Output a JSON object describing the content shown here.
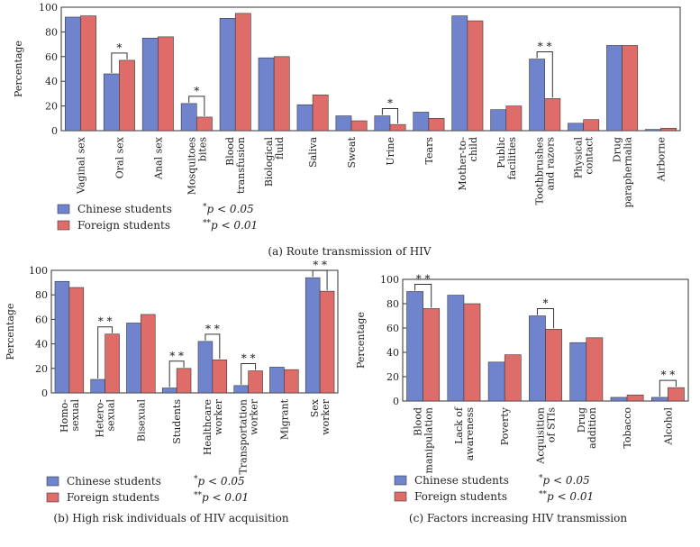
{
  "colors": {
    "chinese": "#6f84cc",
    "foreign": "#de6c68",
    "edge": "#3a3a3a"
  },
  "chart_data": [
    {
      "id": "a",
      "type": "bar",
      "title": "(a)  Route transmission of HIV",
      "ylabel": "Percentage",
      "ylim": [
        0,
        100
      ],
      "yticks": [
        "0",
        "20",
        "40",
        "60",
        "80",
        "100"
      ],
      "categories": [
        "Vaginal sex",
        "Oral sex",
        "Anal sex",
        "Mosquitoes\nbites",
        "Blood\ntransfusion",
        "Biological\nfluid",
        "Saliva",
        "Sweat",
        "Urine",
        "Tears",
        "Mother-to-\nchild",
        "Public\nfacilities",
        "Toothbrushes\nand razors",
        "Physical\ncontact",
        "Drug\nparaphernalia",
        "Airborne"
      ],
      "series": [
        {
          "name": "Chinese students",
          "values": [
            92,
            46,
            75,
            22,
            91,
            59,
            21,
            12,
            12,
            15,
            93,
            17,
            58,
            6,
            69,
            1
          ]
        },
        {
          "name": "Foreign students",
          "values": [
            93,
            57,
            76,
            11,
            95,
            60,
            29,
            8,
            5,
            10,
            89,
            20,
            26,
            9,
            69,
            2
          ]
        }
      ],
      "significance": [
        {
          "index": 1,
          "mark": "*"
        },
        {
          "index": 3,
          "mark": "*"
        },
        {
          "index": 8,
          "mark": "*"
        },
        {
          "index": 12,
          "mark": "* *"
        }
      ],
      "legend_notes": [
        "*p < 0.05",
        "**p < 0.01"
      ]
    },
    {
      "id": "b",
      "type": "bar",
      "title": "(b)  High risk individuals of HIV acquisition",
      "ylabel": "Percentage",
      "ylim": [
        0,
        100
      ],
      "yticks": [
        "0",
        "20",
        "40",
        "60",
        "80",
        "100"
      ],
      "categories": [
        "Homo-\nsexual",
        "Hetero-\nsexual",
        "Bisexual",
        "Students",
        "Healthcare\nworker",
        "Transportation\nworker",
        "Migrant",
        "Sex\nworker"
      ],
      "series": [
        {
          "name": "Chinese students",
          "values": [
            91,
            11,
            57,
            4,
            42,
            6,
            21,
            94
          ]
        },
        {
          "name": "Foreign students",
          "values": [
            86,
            48,
            64,
            20,
            27,
            18,
            19,
            83
          ]
        }
      ],
      "significance": [
        {
          "index": 1,
          "mark": "* *"
        },
        {
          "index": 3,
          "mark": "* *"
        },
        {
          "index": 4,
          "mark": "* *"
        },
        {
          "index": 5,
          "mark": "* *"
        },
        {
          "index": 7,
          "mark": "* *"
        }
      ],
      "legend_notes": [
        "*p < 0.05",
        "**p < 0.01"
      ]
    },
    {
      "id": "c",
      "type": "bar",
      "title": "(c)  Factors increasing HIV transmission",
      "ylabel": "Percentage",
      "ylim": [
        0,
        100
      ],
      "yticks": [
        "0",
        "20",
        "40",
        "60",
        "80",
        "100"
      ],
      "categories": [
        "Blood\nmanipulation",
        "Lack of\nawareness",
        "Poverty",
        "Acquisition\nof STIs",
        "Drug\naddition",
        "Tobacco",
        "Alcohol"
      ],
      "series": [
        {
          "name": "Chinese students",
          "values": [
            90,
            87,
            32,
            70,
            48,
            3,
            3
          ]
        },
        {
          "name": "Foreign students",
          "values": [
            76,
            80,
            38,
            59,
            52,
            5,
            11
          ]
        }
      ],
      "significance": [
        {
          "index": 0,
          "mark": "* *"
        },
        {
          "index": 3,
          "mark": "*"
        },
        {
          "index": 6,
          "mark": "* *"
        }
      ],
      "legend_notes": [
        "*p < 0.05",
        "**p < 0.01"
      ]
    }
  ]
}
